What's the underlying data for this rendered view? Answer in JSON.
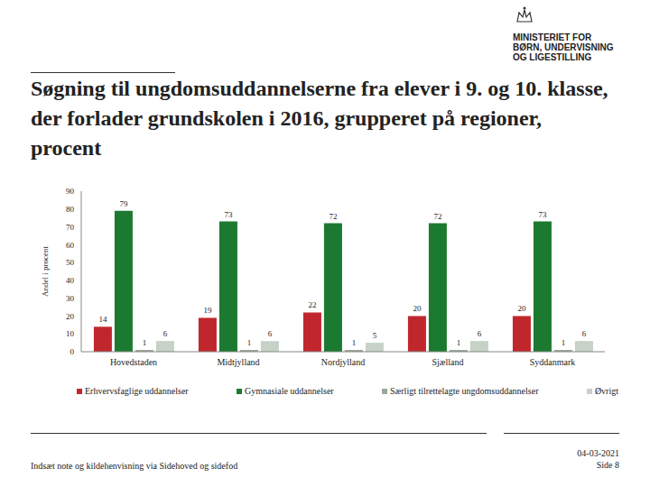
{
  "chart_data": {
    "type": "bar",
    "title": "Søgning til ungdomsuddannelserne fra elever i 9. og 10. klasse, der forlader grundskolen i 2016, grupperet på regioner, procent",
    "y_label": "Andel i procent",
    "categories": [
      "Hovedstaden",
      "Midtjylland",
      "Nordjylland",
      "Sjælland",
      "Syddanmark"
    ],
    "series": [
      {
        "name": "Erhvervsfaglige uddannelser",
        "color": "#c0272d",
        "values": [
          14,
          19,
          22,
          20,
          20
        ]
      },
      {
        "name": "Gymnasiale uddannelser",
        "color": "#1b7a2f",
        "values": [
          79,
          73,
          72,
          72,
          73
        ]
      },
      {
        "name": "Særligt tilrettelagte ungdomsuddannelser",
        "color": "#9aa89a",
        "values": [
          1,
          1,
          1,
          1,
          1
        ]
      },
      {
        "name": "Øvrigt",
        "color": "#c5d2c5",
        "values": [
          6,
          6,
          5,
          6,
          6
        ]
      }
    ],
    "ylim": [
      0,
      90
    ],
    "yticks": [
      0,
      10,
      20,
      30,
      40,
      50,
      60,
      70,
      80,
      90
    ],
    "grid": false,
    "data_labels": true
  },
  "header": {
    "logo_text": [
      "MINISTERIET FOR",
      "BØRN, UNDERVISNING",
      "OG LIGESTILLING"
    ]
  },
  "footer": {
    "note": "Indsæt note og kildehenvisning via Sidehoved og sidefod",
    "date": "04-03-2021",
    "page": "Side 8"
  }
}
